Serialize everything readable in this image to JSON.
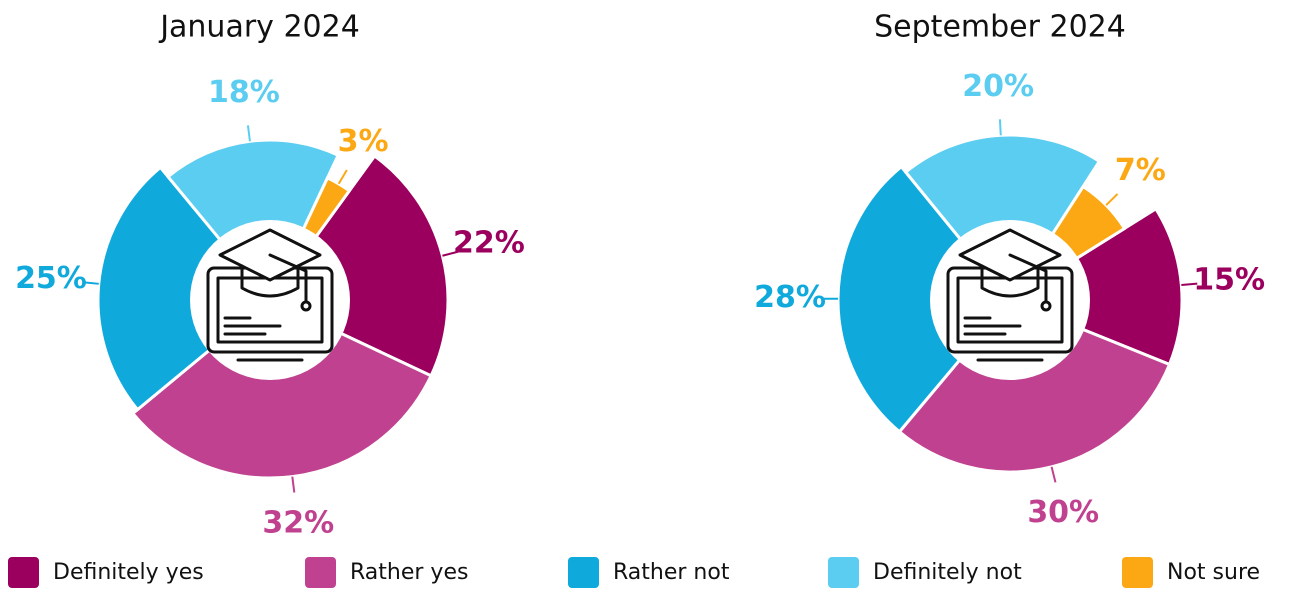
{
  "chart_data": [
    {
      "type": "pie",
      "title": "January 2024",
      "categories": [
        "Definitely yes",
        "Rather yes",
        "Rather not",
        "Definitely not",
        "Not sure"
      ],
      "values": [
        22,
        32,
        25,
        18,
        3
      ],
      "value_labels": [
        "22%",
        "32%",
        "25%",
        "18%",
        "3%"
      ],
      "colors": [
        "#9b005e",
        "#c0418f",
        "#0fa9dc",
        "#5bcdf0",
        "#fca814"
      ]
    },
    {
      "type": "pie",
      "title": "September 2024",
      "categories": [
        "Definitely yes",
        "Rather yes",
        "Rather not",
        "Definitely not",
        "Not sure"
      ],
      "values": [
        15,
        30,
        28,
        20,
        7
      ],
      "value_labels": [
        "15%",
        "30%",
        "28%",
        "20%",
        "7%"
      ],
      "colors": [
        "#9b005e",
        "#c0418f",
        "#0fa9dc",
        "#5bcdf0",
        "#fca814"
      ]
    }
  ]
}
